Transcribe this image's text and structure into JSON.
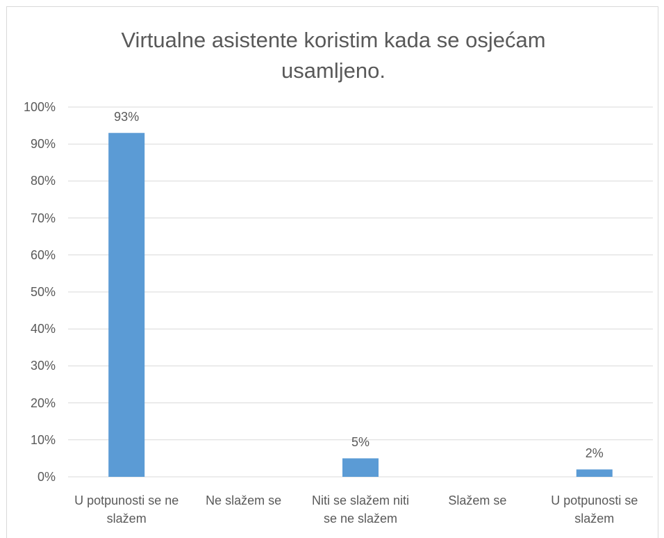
{
  "chart_data": {
    "type": "bar",
    "title": "Virtualne asistente koristim kada se osjećam usamljeno.",
    "categories": [
      "U potpunosti se ne slažem",
      "Ne slažem se",
      "Niti se slažem niti se ne slažem",
      "Slažem se",
      "U potpunosti se slažem"
    ],
    "values": [
      93,
      0,
      5,
      0,
      2
    ],
    "value_labels": [
      "93%",
      null,
      "5%",
      null,
      "2%"
    ],
    "color": "#5b9bd5",
    "ylim": [
      0,
      100
    ],
    "yticks": [
      {
        "value": 0,
        "label": "0%"
      },
      {
        "value": 10,
        "label": "10%"
      },
      {
        "value": 20,
        "label": "20%"
      },
      {
        "value": 30,
        "label": "30%"
      },
      {
        "value": 40,
        "label": "40%"
      },
      {
        "value": 50,
        "label": "50%"
      },
      {
        "value": 60,
        "label": "60%"
      },
      {
        "value": 70,
        "label": "70%"
      },
      {
        "value": 80,
        "label": "80%"
      },
      {
        "value": 90,
        "label": "90%"
      },
      {
        "value": 100,
        "label": "100%"
      }
    ],
    "grid": true
  }
}
